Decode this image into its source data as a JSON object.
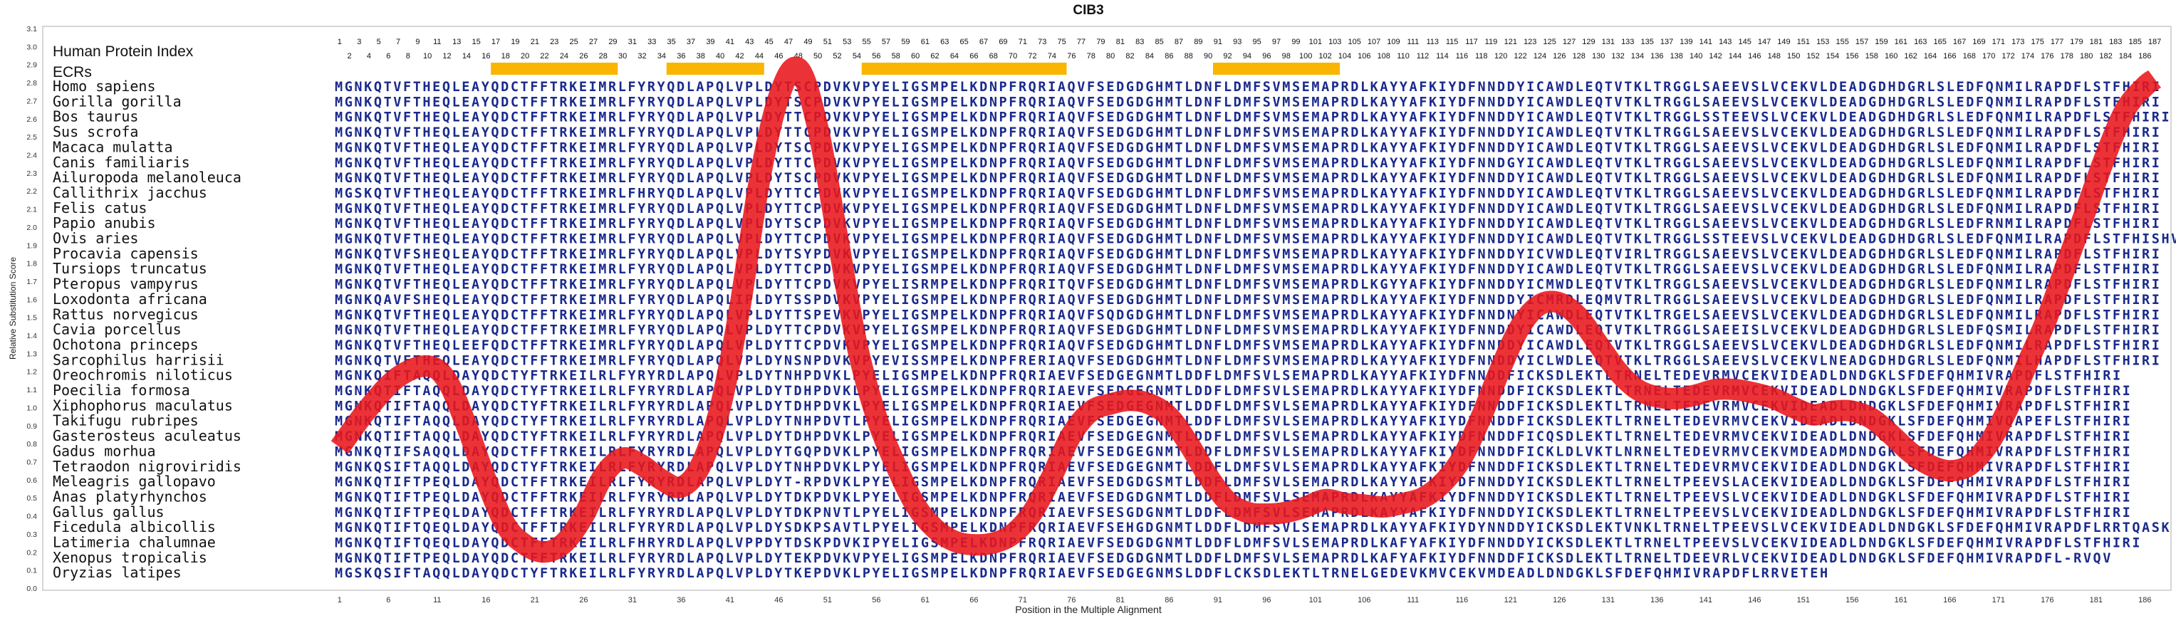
{
  "chart_data": {
    "type": "line",
    "title": "CIB3",
    "xlabel": "Position in the Multiple Alignment",
    "ylabel": "Relative Substitution Score",
    "xlim": [
      1,
      187
    ],
    "ylim": [
      0.0,
      3.1
    ],
    "y_ticks": [
      "0.0",
      "0.1",
      "0.2",
      "0.3",
      "0.4",
      "0.5",
      "0.6",
      "0.7",
      "0.8",
      "0.9",
      "1.0",
      "1.1",
      "1.2",
      "1.3",
      "1.4",
      "1.5",
      "1.6",
      "1.7",
      "1.8",
      "1.9",
      "2.0",
      "2.1",
      "2.2",
      "2.3",
      "2.4",
      "2.5",
      "2.6",
      "2.7",
      "2.8",
      "2.9",
      "3.0",
      "3.1"
    ],
    "x_ticks": [
      1,
      6,
      11,
      16,
      21,
      26,
      31,
      36,
      41,
      46,
      51,
      56,
      61,
      66,
      71,
      76,
      81,
      86,
      91,
      96,
      101,
      106,
      111,
      116,
      121,
      126,
      131,
      136,
      141,
      146,
      151,
      156,
      161,
      166,
      171,
      176,
      181,
      186
    ],
    "human_index_label": "Human Protein Index",
    "ecr_label": "ECRs",
    "ecr_ranges": [
      [
        17,
        29
      ],
      [
        35,
        44
      ],
      [
        55,
        75
      ],
      [
        91,
        103
      ]
    ],
    "line_color": "#e8161b",
    "seq_color": "#1a2a8c",
    "species": [
      {
        "name": "Homo sapiens",
        "seq": "MGNKQTVFTHEQLEAYQDCTFFTRKEIMRLFYRYQDLAPQLVPLDYTSCPDVKVPYELIGSMPELKDNPFRQRIAQVFSEDGDGHMTLDNFLDMFSVMSEMAPRDLKAYYAFKIYDFNNDDYICAWDLEQTVTKLTRGGLSAEEVSLVCEKVLDEADGDHDGRLSLEDFQNMILRAPDFLSTFHIRI"
      },
      {
        "name": "Gorilla gorilla",
        "seq": "MGNKQTVFTHEQLEAYQDCTFFTRKEIMRLFYRYQDLAPQLVPLDYTSCPDVKVPYELIGSMPELKDNPFRQRIAQVFSEDGDGHMTLDNFLDMFSVMSEMAPRDLKAYYAFKIYDFNNDDYICAWDLEQTVTKLTRGGLSAEEVSLVCEKVLDEADGDHDGRLSLEDFQNMILRAPDFLSTFHIRI"
      },
      {
        "name": "Bos taurus",
        "seq": "MGNKQTVFTHEQLEAYQDCTFFTRKEIMRLFYRYQDLAPQLVPLDYTTCPDVKVPYELIGSMPELKDNPFRQRIAQVFSEDGDGHMTLDNFLDMFSVMSEMAPRDLKAYYAFKIYDFNNDDYICAWDLEQTVTKLTRGGLSSTEEVSLVCEKVLDEADGDHDGRLSLEDFQNMILRAPDFLSTFHIRI"
      },
      {
        "name": "Sus scrofa",
        "seq": "MGNKQTVFTHEQLEAYQDCTFFTRKEIMRLFYRYQDLAPQLVPLDYTTCPDVKVPYELIGSMPELKDNPFRQRIAQVFSEDGDGHMTLDNFLDMFSVMSEMAPRDLKAYYAFKIYDFNNDDYICAWDLEQTVTKLTRGGLSAEEVSLVCEKVLDEADGDHDGRLSLEDFQNMILRAPDFLSTFHIRI"
      },
      {
        "name": "Macaca mulatta",
        "seq": "MGNKQTVFTHEQLEAYQDCTFFTRKEIMRLFYRYQDLAPQLVPLDYTSCPDVKVPYELIGSMPELKDNPFRQRIAQVFSEDGDGHMTLDNFLDMFSVMSEMAPRDLKAYYAFKIYDFNNDDYICAWDLEQTVTKLTRGGLSAEEVSLVCEKVLDEADGDHDGRLSLEDFQNMILRAPDFLSTFHIRI"
      },
      {
        "name": "Canis familiaris",
        "seq": "MGNKQTVFTHEQLEAYQDCTFFTRKEIMRLFYRYQDLAPQLVPLDYTTCPDVKVPYELIGSMPELKDNPFRQRIAQVFSEDGDGHMTLDNFLDMFSVMSEMAPRDLKAYYAFKIYDFNNDGYICAWDLEQTVTKLTRGGLSAEEVSLVCEKVLDEADGDHDGRLSLEDFQNMILRAPDFLSTFHIRI"
      },
      {
        "name": "Ailuropoda melanoleuca",
        "seq": "MGNKQTVFTHEQLEAYQDCTFFTRKEIMRLFYRYQDLAPQLVPLDYTSCPDVKVPYELIGSMPELKDNPFRQRIAQVFSEDGDGHMTLDNFLDMFSVMSEMAPRDLKAYYAFKIYDFNNDDYICAWDLEQTVTKLTRGGLSAEEVSLVCEKVLDEADGDHDGRLSLEDFQNMILRAPDFLSTFHIRI"
      },
      {
        "name": "Callithrix jacchus",
        "seq": "MGSKQTVFTHEQLEAYQDCTFFTRKEIMRLFHRYQDLAPQLVPLDYTTCPDVKVPYELIGSMPELKDNPFRQRIAQVFSEDGDGHMTLDNFLDMFSVMSEMAPRDLKAYYAFKIYDFNNDDYICAWDLEQTVTKLTRGGLSAEEVSLVCEKVLDEADGDHDGRLSLEDFQNMILRAPDFLSTFHIRI"
      },
      {
        "name": "Felis catus",
        "seq": "MGNKQTVFTHEQLEAYQDCTFFTRKEIMRLFYRYQDLAPQLVPLDYTTCPDVKVPYELIGSMPELKDNPFRQRIAQVFSEDGDGHMTLDNFLDMFSVMSEMAPRDLKAYYAFKIYDFNNDDYICAWDLEQTVTKLTRGGLSAEEVSLVCEKVLDEADGDHDGRLSLEDFQNMILRAPDFLSTFHIRI"
      },
      {
        "name": "Papio anubis",
        "seq": "MGNKQTVFTHEQLEAYQDCTFFTRKEIMRLFYRYQDLAPQLVPLDYTSCPDVKVPYELIGSMPELKDNPFRQRIAQVFSEDGDGHMTLDNFLDMFSVMSEMAPRDLKAYYAFKIYDFNNDDYICAWDLEQTVTKLTRGGLSAEEVSLVCEKVLDEADGDHDGRLSLEDFRNMILRAPDFLSTFHIRI"
      },
      {
        "name": "Ovis aries",
        "seq": "MGNKQTVFTHEQLEAYQDCTFFTRKEIMRLFYRYQDLAPQLVPLDYTTCPDVKVPYELIGSMPELKDNPFRQRIAQVFSEDGDGHMTLDNFLDMFSVMSEMAPRDLKAYYAFKIYDFNNDDYICAWDLEQTVTKLTRGGLSSTEEVSLVCEKVLDEADGDHDGRLSLEDFQNMILRAPDFLSTFHISHV"
      },
      {
        "name": "Procavia capensis",
        "seq": "MGNKQTVFSHEQLEAYQDCTFFTRKEIMRLFYRYQDLAPQLVPLDYTSYPDVKVPYELIGSMPELKDNPFRQRIAQVFSEDGDGHMTLDNFLDMFSVMSEMAPRDLKAYYAFKIYDFNNDDYICVWDLEQTVIRLTRGGLSAEEVSLVCEKVLDEADGDHDGRLSLEDFQNMILRAPDFLSTFHIRI"
      },
      {
        "name": "Tursiops truncatus",
        "seq": "MGNKQTVFTHEQLEAYQDCTFFTRKEIMRLFYRYQDLAPQLVPLDYTTCPDVKVPYELIGSMPELKDNPFRQRIAQVFSEDGDGHMTLDNFLDMFSVMSEMAPRDLKAYYAFKIYDFNNDDYICAWDLEQTVTKLTRGGLSAEEVSLVCEKVLDEADGDHDGRLSLEDFQNMILRAPDFLSTFHIRI"
      },
      {
        "name": "Pteropus vampyrus",
        "seq": "MGNKQTVFTHEQLEAYQDCTFFTRKEIMRLFYRYQDLAPQLVPLDYTTCPDVKVPYELISRMPELKDNPFRQRITQVFSEDGDGHMTLDNFLDMFSVMSEMAPRDLKGYYAFKIYDFNNDDYICMWDLEQTVTKLTRGGLSAEEVSLVCEKVLDEADGDHDGRLSLEDFQNMILRAPDFLSTFHIRI"
      },
      {
        "name": "Loxodonta africana",
        "seq": "MGNKQAVFSHEQLEAYQDCTFFTRKEIMRLFYRYQDLAPQLIPLDYTSSPDVKVPYELIGSMPELKDNPFRQRIAQVFSEDGDGHMTLDNFLDMFSVMSEMAPRDLKAYYAFKIYDFNNDDYICMRDLEQMVTRLTRGGLSAEEVSLVCEKVLDEADGDHDGRLSLEDFQNMILRAPDFLSTFHIRI"
      },
      {
        "name": "Rattus norvegicus",
        "seq": "MGNKQTVFTHEQLEAYQDCTFFTRKEIMRLFYRYQDLAPQLVPLDYTTSPEVKVPYELIGSMPELKDNPFRQRIAQVFSQDGDGHMTLDNFLDMFSVMSEMAPRDLKAYYAFKIYDFNNDNYICAWDLEQTVTKLTRGELSAEEVSLVCEKVLDEADGDHDGRLSLEDFQNMILRAPDFLSTFHIRI"
      },
      {
        "name": "Cavia porcellus",
        "seq": "MGNKQTVFTHEQLEAYQDCTFFTRKEIMRLFYRYQDLAPQLVPLDYTTCPDVKVPYELIGSMPELKDNPFRQRIAQVFSEDGDGHMTLDNFLDMFSVMSEMAPRDLKAYYAFKIYDFNNDDYICAWDLEQTVTKLTRGGLSAEEISLVCEKVLDEADGDHDGRLSLEDFQSMILRAPDFLSTFHIRI"
      },
      {
        "name": "Ochotona princeps",
        "seq": "MGNKQTVFTHEQLEEFQDCTFFTRKEIMRLFYRYQDLAPQLVPLDYTTCPDVKVPYELIGSMPELKDNPFRQRIAQVFSEDGDGHMTLDNFLDMFSVMSEMAPRDLKAYYAFKIYDFNNDDYICAWDLEQTVTKLTRGGLSAEEVSLVCEKVLDEADGDHDGRLSLEDFQNMILRAPDFLSTFHIRI"
      },
      {
        "name": "Sarcophilus harrisii",
        "seq": "MGNKQTVFTHEQLEAYQDCTFFTRKEIMRLFYRYQDLAPQLVPLDYNSNPDVKVPYEVISSMPELKDNPFRERIAQVFSEDGDGHMTLDNFLDMFSVMSEMAPRDLKAYYAFKIYDFNNDDYICLWDLEQTVTKLTRGGLSAEEVSLVCEKVLNEADGDHDGRLSLEDFQNMILHAPDFLSTFHIRI"
      },
      {
        "name": "Oreochromis niloticus",
        "seq": "MGNKQIFTAQQLDAYQDCTYFTRKEILRLFYRYRDLAPQLVPLDYTNHPDVKLPYELIGSMPELKDNPFRQRIAEVFSEDGEGNMTLDDFLDMFSVLSEMAPRDLKAYYAFKIYDFNNDDFICKSDLEKTLTRNELTEDEVRMVCEKVIDEADLDNDGKLSFDEFQHMIVRAPDFLSTFHIRI"
      },
      {
        "name": "Poecilia formosa",
        "seq": "MGNKQTIFTAQQLDAYQDCTYFTRKEILRLFYRYRDLAPQLVPLDYTDHPDVKLPYELIGSMPELKDNPFRQRIAEVFSEDGEGNMTLDDFLDMFSVLSEMAPRDLKAYYAFKIYDFNNDDFICKSDLEKTLTRNELTEDEVRMVCEKVIDEADLDNDGKLSFDEFQHMIVRAPDFLSTFHIRI"
      },
      {
        "name": "Xiphophorus maculatus",
        "seq": "MGNKQTIFTAQQLDAYQDCTYFTRKEILRLFYRYRDLAPQLVPLDYTDHPDVKLPYELIGSMPELKDNPFRQRIAEVFSEDGEGNMTLDDFLDMFSVLSEMAPRDLKAYYAFKIYDFNNDDFICKSDLEKTLTRNELTEDEVRMVCEKVIDEADLDNDGKLSFDEFQHMIVRAPDFLSTFHIRI"
      },
      {
        "name": "Takifugu rubripes",
        "seq": "MGNKQTIFTAQQLDAYQDCTYFTRKEILRLFYRYRDLAPQLVPLDYTNHPDVTLPYELIGSMPELKDNPFRQRIAEVFSEDGEGNMTLDDFLDMFSVLSEMAPRDLKAYYAFKIYDFNNDDFICKSDLEKTLTRNELTEDEVRMVCEKVIDEADLDNDGKLSFDEFQHMIVQAPEFLSTFHIRI"
      },
      {
        "name": "Gasterosteus aculeatus",
        "seq": "MGNKQTIFTAQQLDAYQDCTYFTRKEILRLFYRYRDLAPQLVPLDYTDHPDVKLPYELIGSMPELKDNPFRQRIAEVFSEDGEGNMTLDDFLDMFSVLSEMAPRDLKAYYAFKIYDFNNDDFICQSDLEKTLTRNELTEDEVRMVCEKVIDEADLDNDGKLSFDEFQHMIVRAPDFLSTFHIRI"
      },
      {
        "name": "Gadus morhua",
        "seq": "MGNKQTIFSAQQLDAYQDCTFFTRKEILRLFYRYRDLAPQLVPLDYTGQPDVKLPYELIGSMPELKDNPFRQRIAEVFSEDGEGNMTLDDFLDMFSVLSEMAPRDLKAYYAFKIYDFNNDDFICKLDLVKTLNRNELTEDEVRMVCEKVMDEADMDNDGKLSFDEFQHMIVRAPDFLSTFHIRI"
      },
      {
        "name": "Tetraodon nigroviridis",
        "seq": "MGNKQSIFTAQQLDAYQDCTYFTRKEILRLFYRYRDLAPQLVPLDYTNHPDVKLPYELIGSMPELKDNPFRQRIAEVFSEDGEGNMTLDDFLDMFSVLSEMAPRDLKAYYAFKIYDFNNDDFICKSDLEKTLTRNELTEDEVRMVCEKVIDEADLDNDGKLSFDEFQHMIVRAPDFLSTFHIRI"
      },
      {
        "name": "Meleagris gallopavo",
        "seq": "MGNKQTIFTPEQLDAYQDCTFFTRKEILRLFYRYRDLAPQLVPLDYT-RPDVKLPYELIGSMPELKDNPFRQRIAEVFSEDGDGSMTLDDFLDMFSVLSEMAPRDLKAYYAFKIYDFNNDDYICKSDLEKTLTRNELTPEEVSLACEKVIDEADLDNDGKLSFDEFQHMIVRAPDFLSTFHIRI"
      },
      {
        "name": "Anas platyrhynchos",
        "seq": "MGNKQTIFTPEQLDAYQDCTFFTRKEILRLFYRYRDLAPQLVPLDYTDKPDVKLPYELIGSMPELKDNPFRQRIAEVFSEDGDGNMTLDDFLDMFSVLSEMAPRDLKAYYAFKIYDFNNDDYICKSDLEKTLTRNELTPEEVSLVCEKVIDEADLDNDGKLSFDEFQHMIVRAPDFLSTFHIRI"
      },
      {
        "name": "Gallus gallus",
        "seq": "MGNKQTIFTPEQLDAYQDCTFFTRKEILRLFYRYRDLAPQLVPLDYTDKPNVTLPYELIGSMPELKDNPFRQRIAEVFSESGDGNMTLDDFLDMFSVLSEMAPRDLKAYYAFKIYDFNNDDYICKSDLEKTLTRNELTPEEVSLVCEKVIDEADLDNDGKLSFDEFQHMIVRAPDFLSTFHIRI"
      },
      {
        "name": "Ficedula albicollis",
        "seq": "MGNKQTIFTQEQLDAYQDCTFFTRKEILRLFYRYRDLAPQLVPLDYSDKPSAVTLPYELIGSMPELKDNPFRQRIAEVFSEHGDGNMTLDDFLDMFSVLSEMAPRDLKAYYAFKIYDYNNDDYICKSDLEKTVNKLTRNELTPEEVSLVCEKVIDEADLDNDGKLSFDEFQHMIVRAPDFLRRTQASK"
      },
      {
        "name": "Latimeria chalumnae",
        "seq": "MGNKQTIFTQEQLDAYQDCTFFTRKEILRLFHRYRDLAPQLVPPDYTDSKPDVKIPYELIGSMPELKDNPFRQRIAEVFSEDGDGNMTLDDFLDMFSVLSEMAPRDLKAFYAFKIYDFNNDDYICKSDLEKTLTRNELTPEEVSLVCEKVIDEADLDNDGKLSFDEFQHMIVRAPDFLSTFHIRI"
      },
      {
        "name": "Xenopus tropicalis",
        "seq": "MGNKQTIFTPEQLDAYQDCTFFTRKEILRLFYRYRDLAPQLVPLDYTEKPDVKVPYELIGSMPELKDNPFRQRIAEVFSEDGDGNMTLDDFLDMFSVLSEMAPRDLKAFYAFKIYDFNNDDFICKSDLEKTLTRNELTDEEVRLVCEKVIDEADLDNDGKLSFDEFQHMIVRAPDFL-RVQV"
      },
      {
        "name": "Oryzias latipes",
        "seq": "MGSKQSIFTAQQLDAYQDCTYFTRKEILRLFYRYRDLAPQLVPLDYTKEPDVKLPYELIGSMPELKDNPFRQRIAEVFSEDGEGNMSLDDFLCKSDLEKTLTRNELGEDEVKMVCEKVMDEADLDNDGKLSFDEFQHMIVRAPDFLRRVETEH"
      }
    ],
    "series": [
      {
        "x": [
          1,
          4,
          7,
          10,
          12,
          14,
          16,
          18,
          20,
          22,
          24,
          26,
          28,
          30,
          32,
          34,
          36,
          38,
          40,
          42,
          44,
          46,
          48,
          50,
          52,
          54,
          56,
          58,
          60,
          62,
          64,
          66,
          68,
          70,
          72,
          74,
          76,
          78,
          80,
          82,
          84,
          86,
          88,
          90,
          92,
          94,
          96,
          98,
          100,
          102,
          104,
          106,
          108,
          110,
          112,
          114,
          116,
          118,
          120,
          122,
          124,
          126,
          128,
          130,
          132,
          134,
          136,
          138,
          140,
          142,
          144,
          146,
          148,
          150,
          152,
          154,
          156,
          158,
          160,
          162,
          164,
          166,
          168,
          170,
          172,
          174,
          176,
          178,
          180,
          182,
          184,
          186,
          187
        ],
        "y": [
          0.78,
          1.0,
          1.17,
          1.23,
          1.15,
          0.9,
          0.6,
          0.35,
          0.24,
          0.2,
          0.25,
          0.4,
          0.62,
          0.72,
          0.68,
          0.6,
          0.56,
          0.68,
          1.0,
          1.55,
          2.25,
          2.72,
          2.88,
          2.55,
          1.95,
          1.35,
          0.95,
          0.68,
          0.46,
          0.33,
          0.26,
          0.24,
          0.25,
          0.3,
          0.42,
          0.62,
          0.85,
          0.98,
          1.02,
          1.04,
          1.02,
          0.95,
          0.8,
          0.62,
          0.48,
          0.42,
          0.41,
          0.42,
          0.45,
          0.49,
          0.47,
          0.46,
          0.45,
          0.47,
          0.5,
          0.58,
          0.72,
          0.95,
          1.22,
          1.45,
          1.57,
          1.58,
          1.5,
          1.35,
          1.2,
          1.1,
          1.06,
          1.05,
          1.07,
          1.1,
          1.1,
          1.08,
          1.05,
          1.0,
          0.96,
          0.98,
          0.98,
          0.94,
          0.85,
          0.75,
          0.68,
          0.65,
          0.68,
          0.8,
          1.0,
          1.25,
          1.5,
          1.8,
          2.1,
          2.4,
          2.65,
          2.78,
          2.82
        ]
      }
    ]
  }
}
